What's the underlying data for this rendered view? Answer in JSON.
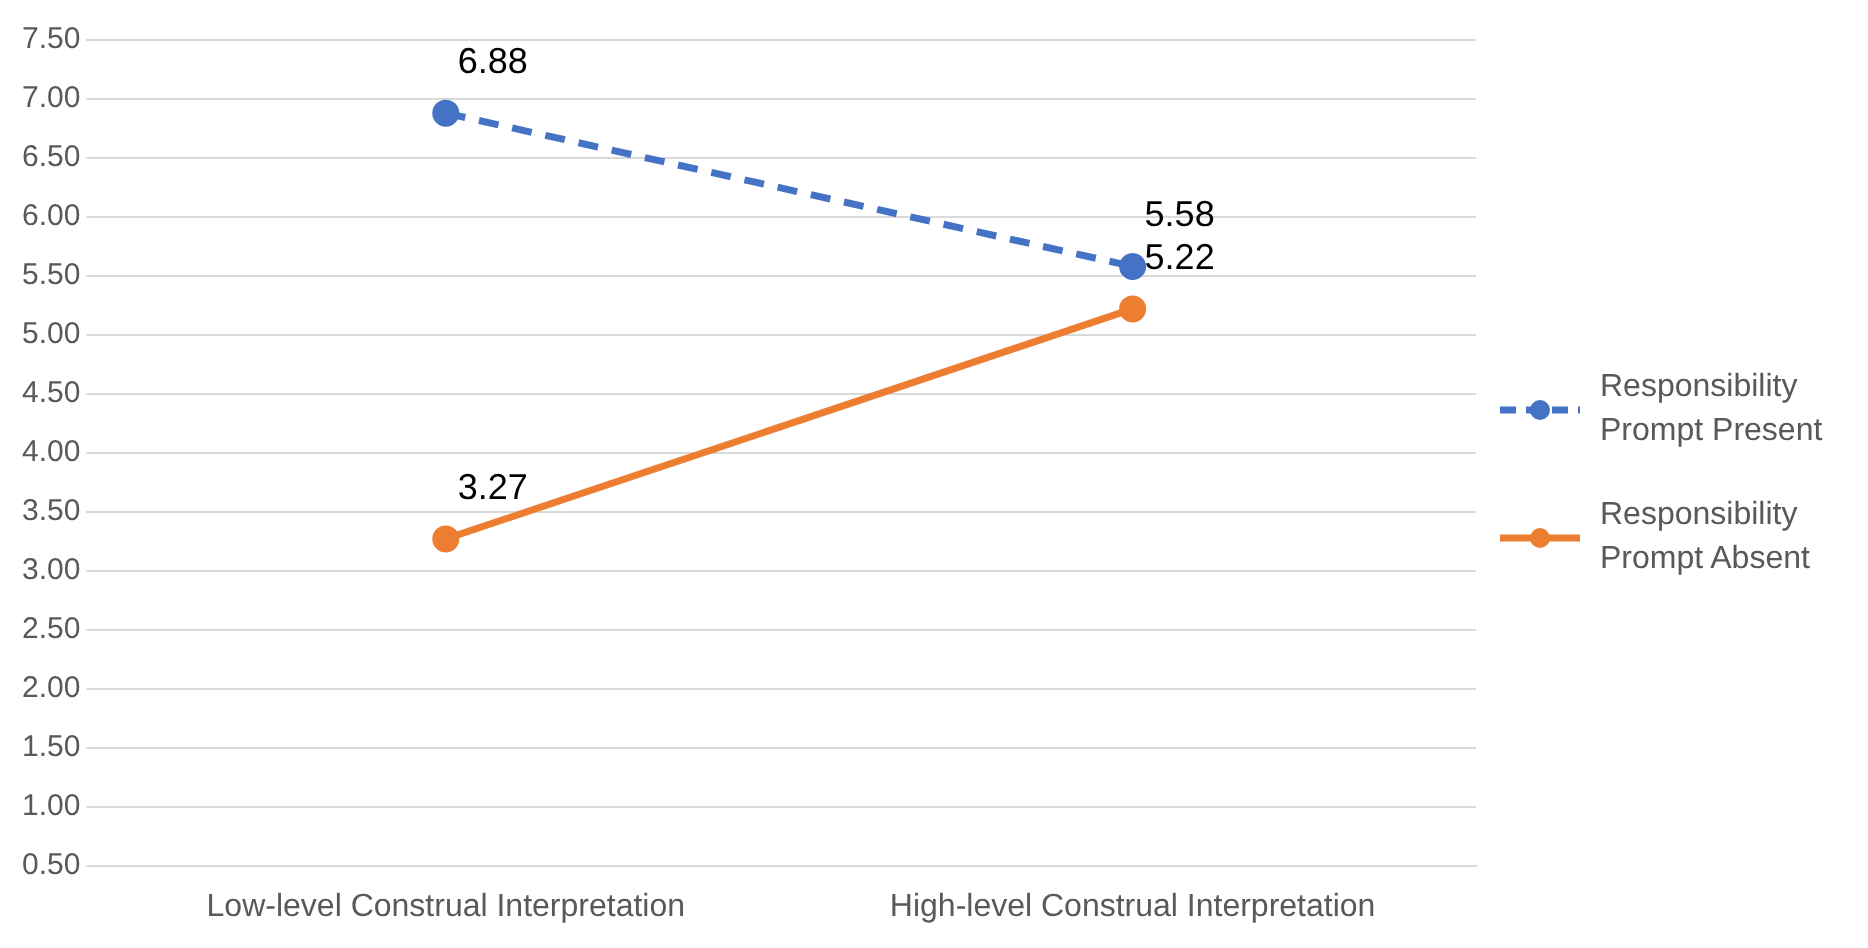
{
  "chart_data": {
    "type": "line",
    "categories": [
      "Low-level Construal Interpretation",
      "High-level Construal Interpretation"
    ],
    "series": [
      {
        "name": "Responsibility Prompt Present",
        "color": "#4472c4",
        "values": [
          6.88,
          5.58
        ],
        "line_style": "dashed"
      },
      {
        "name": "Responsibility Prompt Absent",
        "color": "#ed7d31",
        "values": [
          3.27,
          5.22
        ],
        "line_style": "solid"
      }
    ],
    "ylim": [
      0.5,
      7.5
    ],
    "yticks": [
      {
        "value": 0.5,
        "label": "0.50"
      },
      {
        "value": 1,
        "label": "1.00"
      },
      {
        "value": 1.5,
        "label": "1.50"
      },
      {
        "value": 2,
        "label": "2.00"
      },
      {
        "value": 2.5,
        "label": "2.50"
      },
      {
        "value": 3,
        "label": "3.00"
      },
      {
        "value": 3.5,
        "label": "3.50"
      },
      {
        "value": 4,
        "label": "4.00"
      },
      {
        "value": 4.5,
        "label": "4.50"
      },
      {
        "value": 5,
        "label": "5.00"
      },
      {
        "value": 5.5,
        "label": "5.50"
      },
      {
        "value": 6,
        "label": "6.00"
      },
      {
        "value": 6.5,
        "label": "6.50"
      },
      {
        "value": 7,
        "label": "7.00"
      },
      {
        "value": 7.5,
        "label": "7.50"
      }
    ],
    "grid": "y",
    "legend": "right",
    "marker": "circle",
    "data_labels": true
  }
}
